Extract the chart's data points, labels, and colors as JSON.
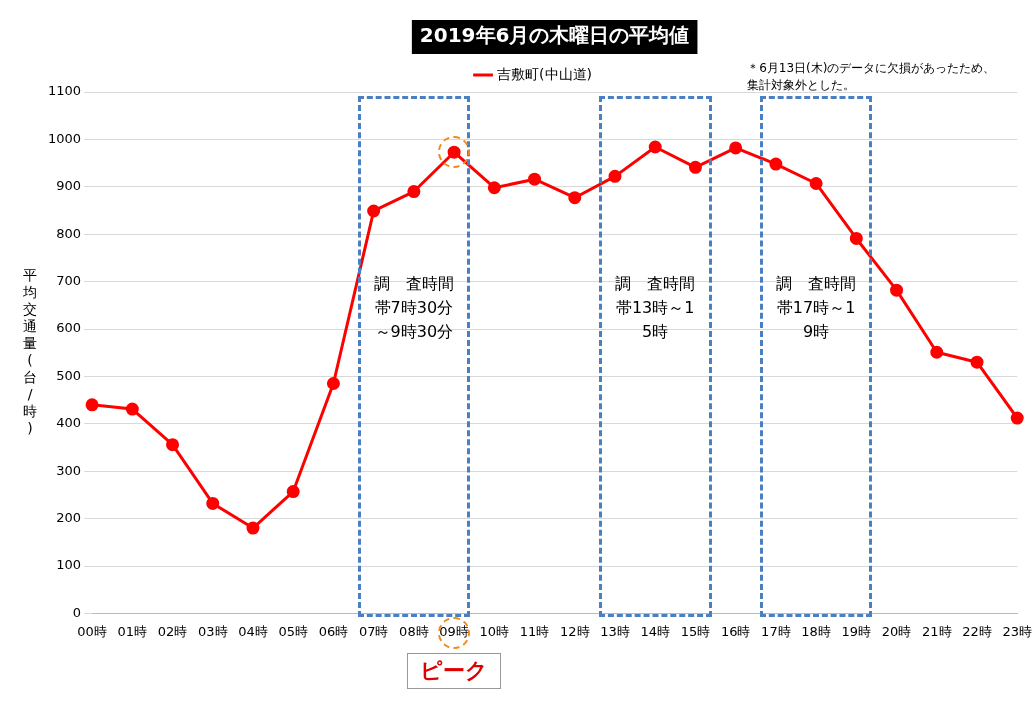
{
  "chart_data": {
    "type": "line",
    "title": "2019年6月の木曜日の平均値",
    "ylabel": "平均交通量(台/時)",
    "categories": [
      "00時",
      "01時",
      "02時",
      "03時",
      "04時",
      "05時",
      "06時",
      "07時",
      "08時",
      "09時",
      "10時",
      "11時",
      "12時",
      "13時",
      "14時",
      "15時",
      "16時",
      "17時",
      "18時",
      "19時",
      "20時",
      "21時",
      "22時",
      "23時"
    ],
    "series": [
      {
        "name": "吉敷町(中山道)",
        "color": "#ff0000",
        "values": [
          440,
          431,
          356,
          232,
          180,
          257,
          485,
          849,
          890,
          973,
          898,
          916,
          877,
          922,
          984,
          941,
          982,
          948,
          907,
          791,
          682,
          551,
          530,
          412
        ]
      }
    ],
    "ylim": [
      0,
      1100
    ],
    "yticks": [
      0,
      100,
      200,
      300,
      400,
      500,
      600,
      700,
      800,
      900,
      1000,
      1100
    ],
    "grid": "y",
    "legend": "top",
    "marker": "circle",
    "line_style": "solid",
    "annotations": [
      "ピーク",
      "＊6月13日(木)のデータに欠損があったため、集計対象外とした。",
      "調　査時間帯7時30分～9時30分",
      "調　査時間帯13時～15時",
      "調　査時間帯17時～19時"
    ]
  }
}
